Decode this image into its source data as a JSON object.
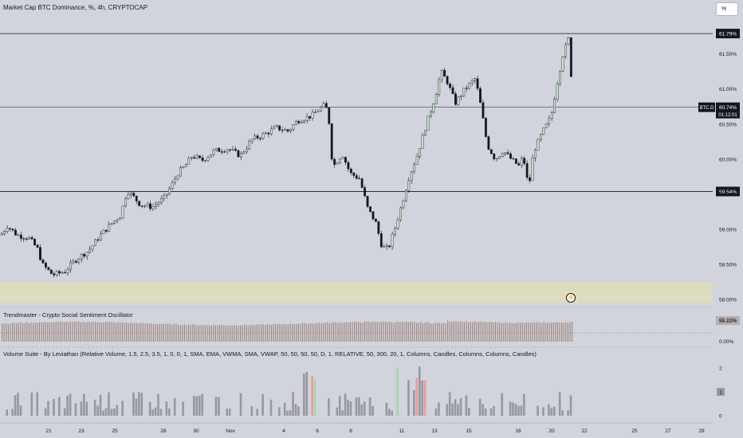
{
  "title": "Market Cap BTC Dominance, %, 4h, CRYPTOCAP",
  "scale_button": "%",
  "alert_icon": "lightning-icon",
  "colors": {
    "background": "#d1d4dc",
    "candle_up": "#c8e6c9",
    "candle_down": "#131722",
    "volume_bar": "#9598a1",
    "volume_up_highlight": "#a5d6a7",
    "volume_down_highlight": "#ef9a9a",
    "oscillator": "#a1887f",
    "highlight_zone": "#dedcbf"
  },
  "chart_data": [
    {
      "type": "candlestick",
      "name": "BTC.D",
      "ylim": [
        57.9,
        61.95
      ],
      "y_ticks": [
        "61.50%",
        "61.00%",
        "60.50%",
        "60.00%",
        "59.50%",
        "59.00%",
        "58.50%",
        "58.00%"
      ],
      "x_ticks": [
        "21",
        "23",
        "25",
        "28",
        "30",
        "Nov",
        "4",
        "6",
        "8",
        "11",
        "13",
        "15",
        "18",
        "20",
        "22",
        "25",
        "27",
        "29"
      ],
      "horizontal_levels": [
        {
          "value": 61.79,
          "label": "61.79%"
        },
        {
          "value": 59.54,
          "label": "59.54%"
        }
      ],
      "current": {
        "symbol": "BTC.D",
        "value_label": "60.74%",
        "countdown": "01:12:01",
        "value": 60.74
      },
      "highlight_zone": {
        "from": 57.95,
        "to": 58.25
      },
      "close_path": [
        [
          0,
          58.92
        ],
        [
          8,
          59.05
        ],
        [
          20,
          58.92
        ],
        [
          35,
          58.88
        ],
        [
          46,
          58.72
        ],
        [
          52,
          58.5
        ],
        [
          65,
          58.35
        ],
        [
          80,
          58.4
        ],
        [
          95,
          58.58
        ],
        [
          110,
          58.7
        ],
        [
          125,
          58.92
        ],
        [
          140,
          59.1
        ],
        [
          150,
          59.2
        ],
        [
          158,
          59.55
        ],
        [
          165,
          59.48
        ],
        [
          175,
          59.35
        ],
        [
          190,
          59.32
        ],
        [
          205,
          59.45
        ],
        [
          215,
          59.65
        ],
        [
          222,
          59.8
        ],
        [
          232,
          59.92
        ],
        [
          240,
          60.05
        ],
        [
          252,
          59.98
        ],
        [
          268,
          60.12
        ],
        [
          285,
          60.15
        ],
        [
          300,
          60.05
        ],
        [
          315,
          60.28
        ],
        [
          330,
          60.35
        ],
        [
          345,
          60.45
        ],
        [
          360,
          60.4
        ],
        [
          372,
          60.55
        ],
        [
          390,
          60.62
        ],
        [
          400,
          60.72
        ],
        [
          407,
          60.78
        ],
        [
          412,
          60.5
        ],
        [
          416,
          59.88
        ],
        [
          428,
          60.08
        ],
        [
          438,
          59.8
        ],
        [
          450,
          59.72
        ],
        [
          460,
          59.3
        ],
        [
          470,
          59.1
        ],
        [
          478,
          58.75
        ],
        [
          486,
          58.72
        ],
        [
          495,
          59.05
        ],
        [
          505,
          59.45
        ],
        [
          512,
          59.75
        ],
        [
          522,
          60.05
        ],
        [
          535,
          60.55
        ],
        [
          545,
          60.9
        ],
        [
          552,
          61.25
        ],
        [
          560,
          61.1
        ],
        [
          570,
          60.8
        ],
        [
          582,
          61.0
        ],
        [
          595,
          61.15
        ],
        [
          602,
          60.75
        ],
        [
          610,
          60.2
        ],
        [
          620,
          60.0
        ],
        [
          630,
          60.12
        ],
        [
          640,
          60.0
        ],
        [
          650,
          59.9
        ],
        [
          655,
          60.05
        ],
        [
          662,
          59.58
        ],
        [
          668,
          60.1
        ],
        [
          680,
          60.4
        ],
        [
          690,
          60.6
        ],
        [
          697,
          61.05
        ],
        [
          705,
          61.5
        ],
        [
          712,
          61.72
        ],
        [
          718,
          60.74
        ]
      ]
    },
    {
      "type": "bar",
      "name": "Trendmaster - Crypto Social Sentiment Oscillator",
      "value_label": "55.22%",
      "y_ticks": [
        "0.00%"
      ],
      "values": [
        55.22
      ]
    },
    {
      "type": "bar",
      "name": "Volume Suite - By Leviathan (Relative Volume, 1.5, 2.5, 3.5, 1, 0, 0, 1, SMA, EMA, VWMA, SMA, VWAP, 50, 50, 50, 50, D, 1, RELATIVE, 50, 300, 20, 1, Columns, Candles, Columns, Columns, Candles)",
      "current_value_label": "1",
      "y_ticks": [
        "2",
        "1",
        "0"
      ],
      "ylim": [
        0,
        2.5
      ]
    }
  ]
}
